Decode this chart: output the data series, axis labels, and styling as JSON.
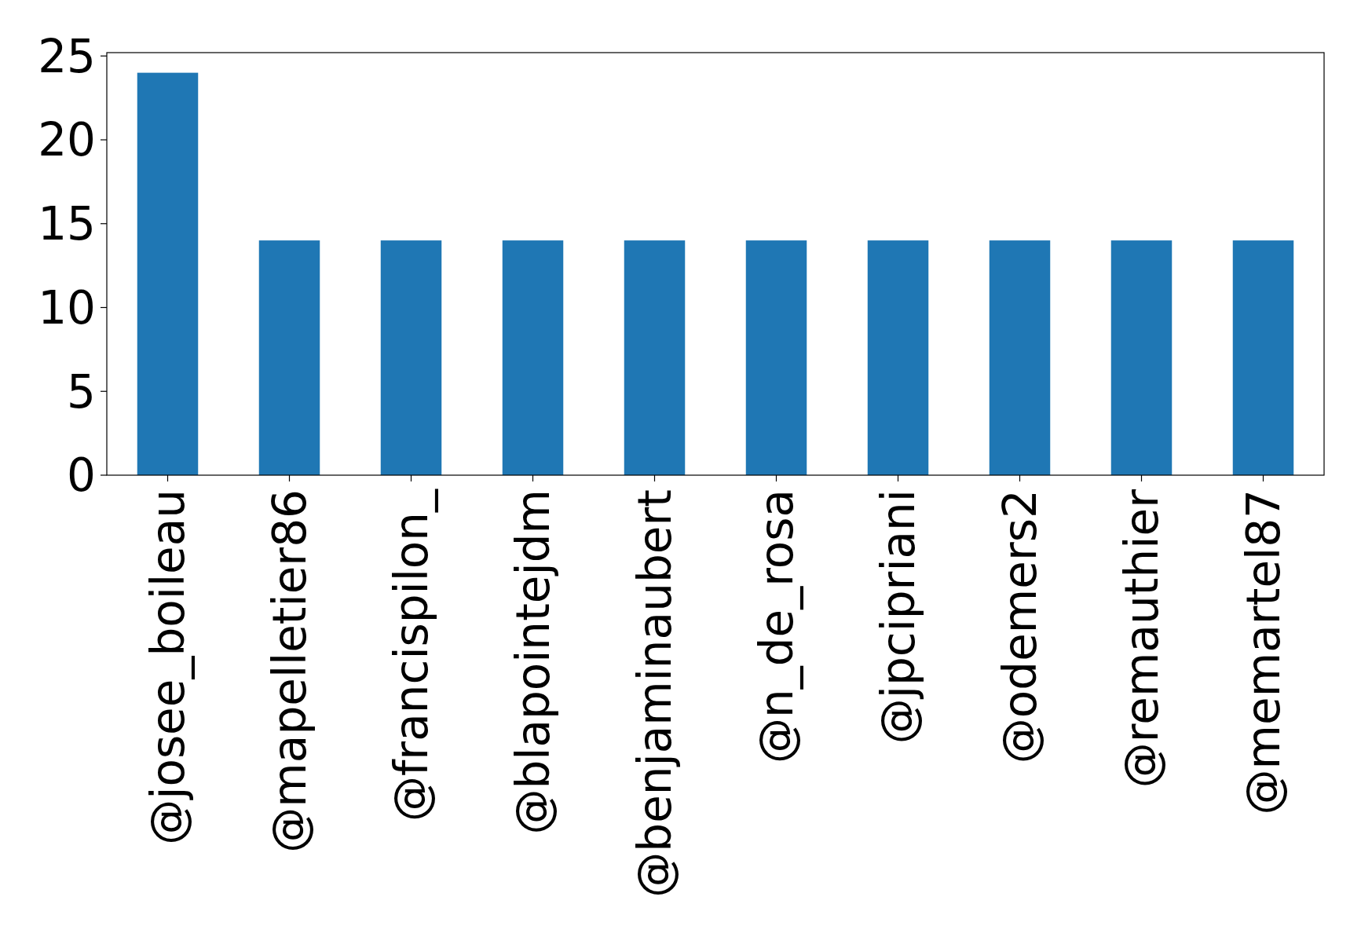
{
  "chart_data": {
    "type": "bar",
    "categories": [
      "@josee_boileau",
      "@mapelletier86",
      "@francispilon_",
      "@blapointejdm",
      "@benjaminaubert",
      "@n_de_rosa",
      "@jpcipriani",
      "@odemers2",
      "@remauthier",
      "@memartel87"
    ],
    "values": [
      24,
      14,
      14,
      14,
      14,
      14,
      14,
      14,
      14,
      14
    ],
    "color": "#1f77b4",
    "ylim": [
      0,
      25.2
    ],
    "yticks": [
      0,
      5,
      10,
      15,
      20,
      25
    ],
    "grid": false
  }
}
